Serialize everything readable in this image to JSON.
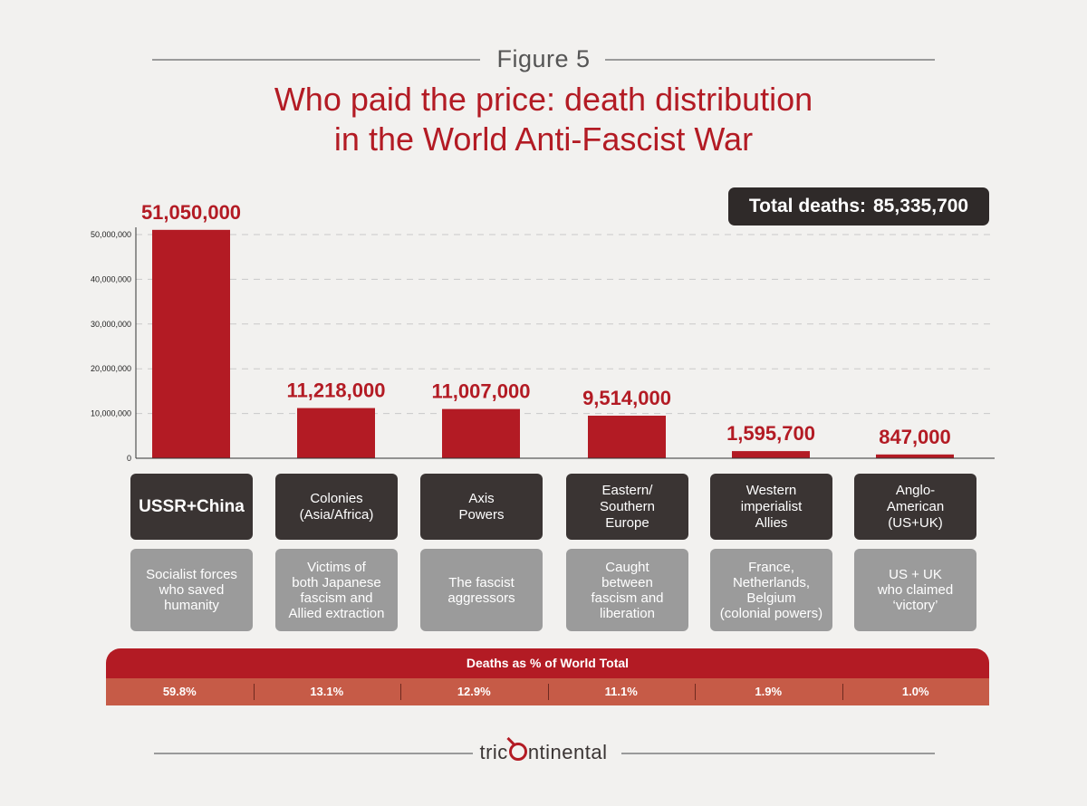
{
  "figure_label": "Figure 5",
  "title_line1": "Who paid the price: death distribution",
  "title_line2": "in the World Anti-Fascist War",
  "total": {
    "label": "Total deaths:",
    "value": "85,335,700"
  },
  "chart_data": {
    "type": "bar",
    "title": "Who paid the price: death distribution in the World Anti-Fascist War",
    "categories": [
      "USSR+China",
      "Colonies (Asia/Africa)",
      "Axis Powers",
      "Eastern/ Southern Europe",
      "Western imperialist Allies",
      "Anglo-American (US+UK)"
    ],
    "values": [
      51050000,
      11218000,
      11007000,
      9514000,
      1595700,
      847000
    ],
    "value_labels": [
      "51,050,000",
      "11,218,000",
      "11,007,000",
      "9,514,000",
      "1,595,700",
      "847,000"
    ],
    "ylim": [
      0,
      50000000
    ],
    "yticks": [
      0,
      10000000,
      20000000,
      30000000,
      40000000,
      50000000
    ],
    "ytick_labels": [
      "0",
      "10,000,000",
      "20,000,000",
      "30,000,000",
      "40,000,000",
      "50,000,000"
    ],
    "xlabel": "",
    "ylabel": "",
    "grid": true,
    "bar_color": "#b31b24"
  },
  "groups": [
    {
      "name": "USSR+China",
      "desc": "Socialist forces\nwho saved\nhumanity",
      "pct": "59.8%",
      "big": true
    },
    {
      "name": "Colonies\n(Asia/Africa)",
      "desc": "Victims of\nboth Japanese\nfascism and\nAllied extraction",
      "pct": "13.1%"
    },
    {
      "name": "Axis\nPowers",
      "desc": "The fascist\naggressors",
      "pct": "12.9%"
    },
    {
      "name": "Eastern/\nSouthern\nEurope",
      "desc": "Caught\nbetween\nfascism and\nliberation",
      "pct": "11.1%"
    },
    {
      "name": "Western\nimperialist\nAllies",
      "desc": "France,\nNetherlands,\nBelgium\n(colonial powers)",
      "pct": "1.9%"
    },
    {
      "name": "Anglo-\nAmerican\n(US+UK)",
      "desc": "US + UK\nwho claimed\n‘victory’",
      "pct": "1.0%"
    }
  ],
  "pct_header": "Deaths as % of  World Total",
  "logo": {
    "prefix": "tric",
    "suffix": "ntinental"
  },
  "colors": {
    "accent": "#b31b24",
    "dark": "#3a3433",
    "grey": "#9b9b9b",
    "pct_bg": "#c65b47"
  }
}
